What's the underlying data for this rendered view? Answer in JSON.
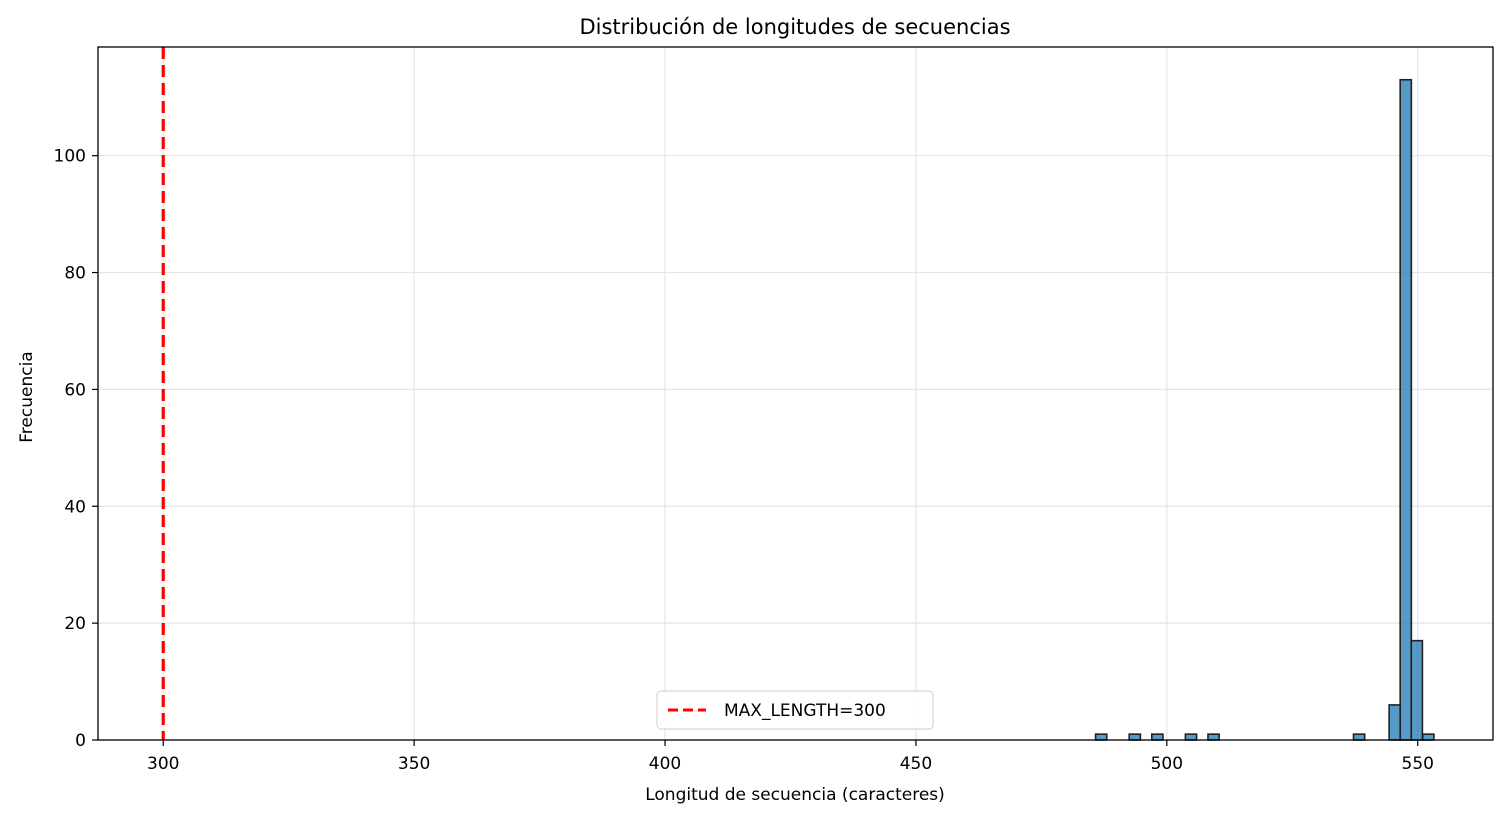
{
  "chart_data": {
    "type": "bar",
    "title": "Distribución de longitudes de secuencias",
    "xlabel": "Longitud de secuencia (caracteres)",
    "ylabel": "Frecuencia",
    "xlim": [
      287,
      565
    ],
    "ylim": [
      0,
      118.6
    ],
    "xticks": [
      300,
      350,
      400,
      450,
      500,
      550
    ],
    "yticks": [
      0,
      20,
      40,
      60,
      80,
      100
    ],
    "grid": true,
    "bar_color": "#1f77b4",
    "bar_edge_color": "#222222",
    "bin_width": 2.23,
    "bins": [
      {
        "x0": 485.8,
        "count": 1
      },
      {
        "x0": 492.5,
        "count": 1
      },
      {
        "x0": 497.0,
        "count": 1
      },
      {
        "x0": 503.7,
        "count": 1
      },
      {
        "x0": 508.2,
        "count": 1
      },
      {
        "x0": 537.2,
        "count": 1
      },
      {
        "x0": 544.3,
        "count": 6
      },
      {
        "x0": 546.5,
        "count": 113
      },
      {
        "x0": 548.7,
        "count": 17
      },
      {
        "x0": 551.0,
        "count": 1
      }
    ],
    "reference_line": {
      "x": 300,
      "color": "#ff0000",
      "style": "dashed",
      "label": "MAX_LENGTH=300"
    },
    "legend": {
      "position": "lower-center",
      "entries": [
        "MAX_LENGTH=300"
      ]
    }
  }
}
